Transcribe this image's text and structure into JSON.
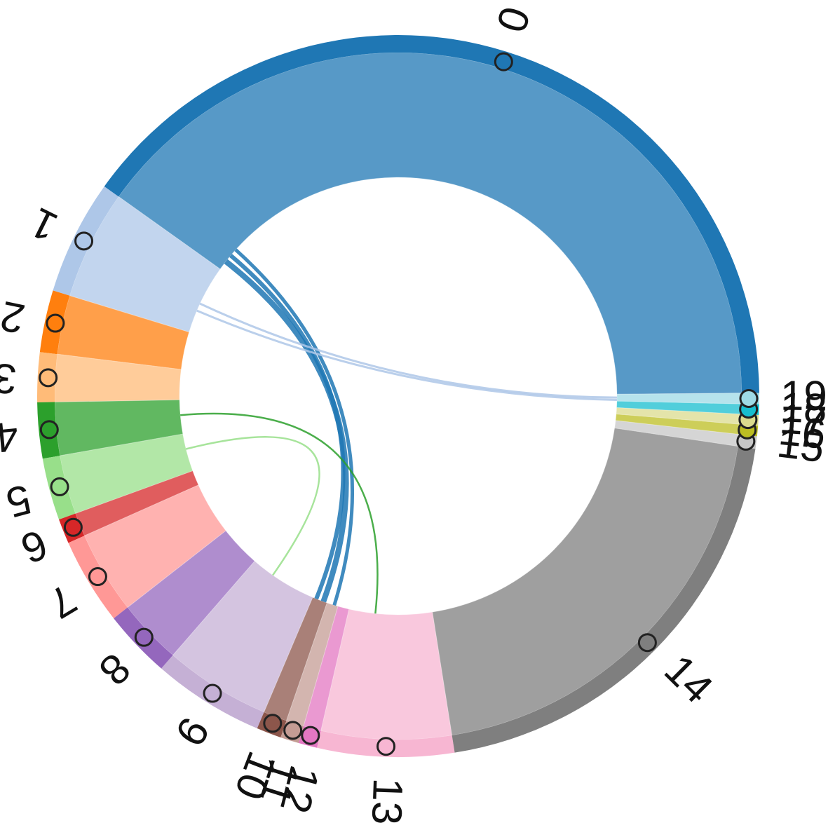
{
  "nodes": [
    {
      "label": "0",
      "color": "#1f77b4"
    },
    {
      "label": "1",
      "color": "#aec7e8"
    },
    {
      "label": "2",
      "color": "#ff7f0e"
    },
    {
      "label": "3",
      "color": "#ffbb78"
    },
    {
      "label": "4",
      "color": "#2ca02c"
    },
    {
      "label": "5",
      "color": "#98df8a"
    },
    {
      "label": "6",
      "color": "#d62728"
    },
    {
      "label": "7",
      "color": "#ff9896"
    },
    {
      "label": "8",
      "color": "#9467bd"
    },
    {
      "label": "9",
      "color": "#c5b0d5"
    },
    {
      "label": "10",
      "color": "#8c564b"
    },
    {
      "label": "11",
      "color": "#c49c94"
    },
    {
      "label": "12",
      "color": "#e377c2"
    },
    {
      "label": "13",
      "color": "#f7b6d2"
    },
    {
      "label": "14",
      "color": "#7f7f7f"
    },
    {
      "label": "15",
      "color": "#c7c7c7"
    },
    {
      "label": "16",
      "color": "#bcbd22"
    },
    {
      "label": "17",
      "color": "#dbdb8d"
    },
    {
      "label": "18",
      "color": "#17becf"
    },
    {
      "label": "19",
      "color": "#9edae5"
    }
  ]
}
